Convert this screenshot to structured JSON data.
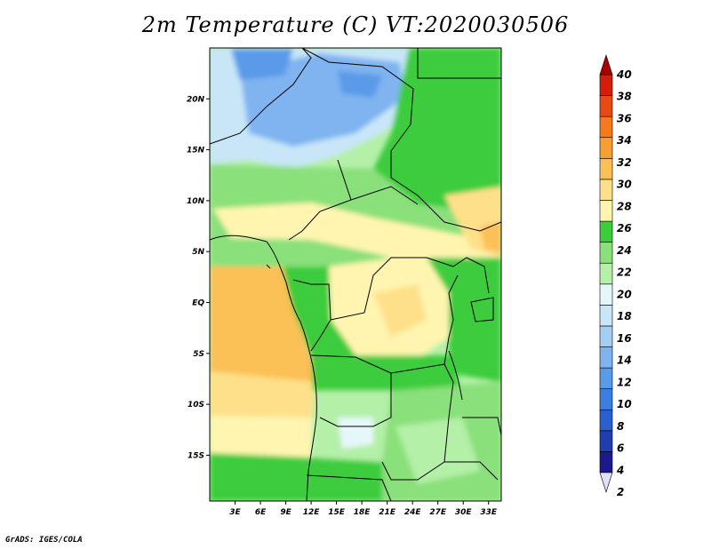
{
  "title": "2m Temperature (C) VT:2020030506",
  "credit": "GrADS: IGES/COLA",
  "map": {
    "lon_range": [
      0,
      34.5
    ],
    "lat_range": [
      -19.5,
      25
    ],
    "lon_ticks": [
      "3E",
      "6E",
      "9E",
      "12E",
      "15E",
      "18E",
      "21E",
      "24E",
      "27E",
      "30E",
      "33E"
    ],
    "lon_tick_values": [
      3,
      6,
      9,
      12,
      15,
      18,
      21,
      24,
      27,
      30,
      33
    ],
    "lat_ticks": [
      "20N",
      "15N",
      "10N",
      "5N",
      "EQ",
      "5S",
      "10S",
      "15S"
    ],
    "lat_tick_values": [
      20,
      15,
      10,
      5,
      0,
      -5,
      -10,
      -15
    ]
  },
  "colorbar": {
    "levels": [
      "2",
      "4",
      "6",
      "8",
      "10",
      "12",
      "14",
      "16",
      "18",
      "20",
      "22",
      "24",
      "26",
      "28",
      "30",
      "32",
      "34",
      "36",
      "38",
      "40"
    ],
    "colors": [
      "#1a1a8c",
      "#1f3fb0",
      "#2a5fd0",
      "#3a7fe0",
      "#5a9ae8",
      "#7fb4f0",
      "#a5cef5",
      "#c8e6f8",
      "#e6f7fa",
      "#b4f0a8",
      "#8ae07a",
      "#3ccc3c",
      "#fff5b0",
      "#ffe08a",
      "#fbc056",
      "#f5a030",
      "#f57a1e",
      "#e84a14",
      "#d41e0a",
      "#a80000"
    ],
    "under_color": "#e0e0f8",
    "over_color": "#a80000"
  },
  "palette": {
    "cool_blue": "#7fb4f0",
    "light_blue": "#c8e6f8",
    "pale": "#e6f7fa",
    "light_green": "#b4f0a8",
    "green": "#8ae07a",
    "dark_green": "#3ccc3c",
    "pale_yellow": "#fff5b0",
    "yellow": "#ffe08a",
    "orange": "#fbc056",
    "dark_orange": "#f5a030"
  }
}
